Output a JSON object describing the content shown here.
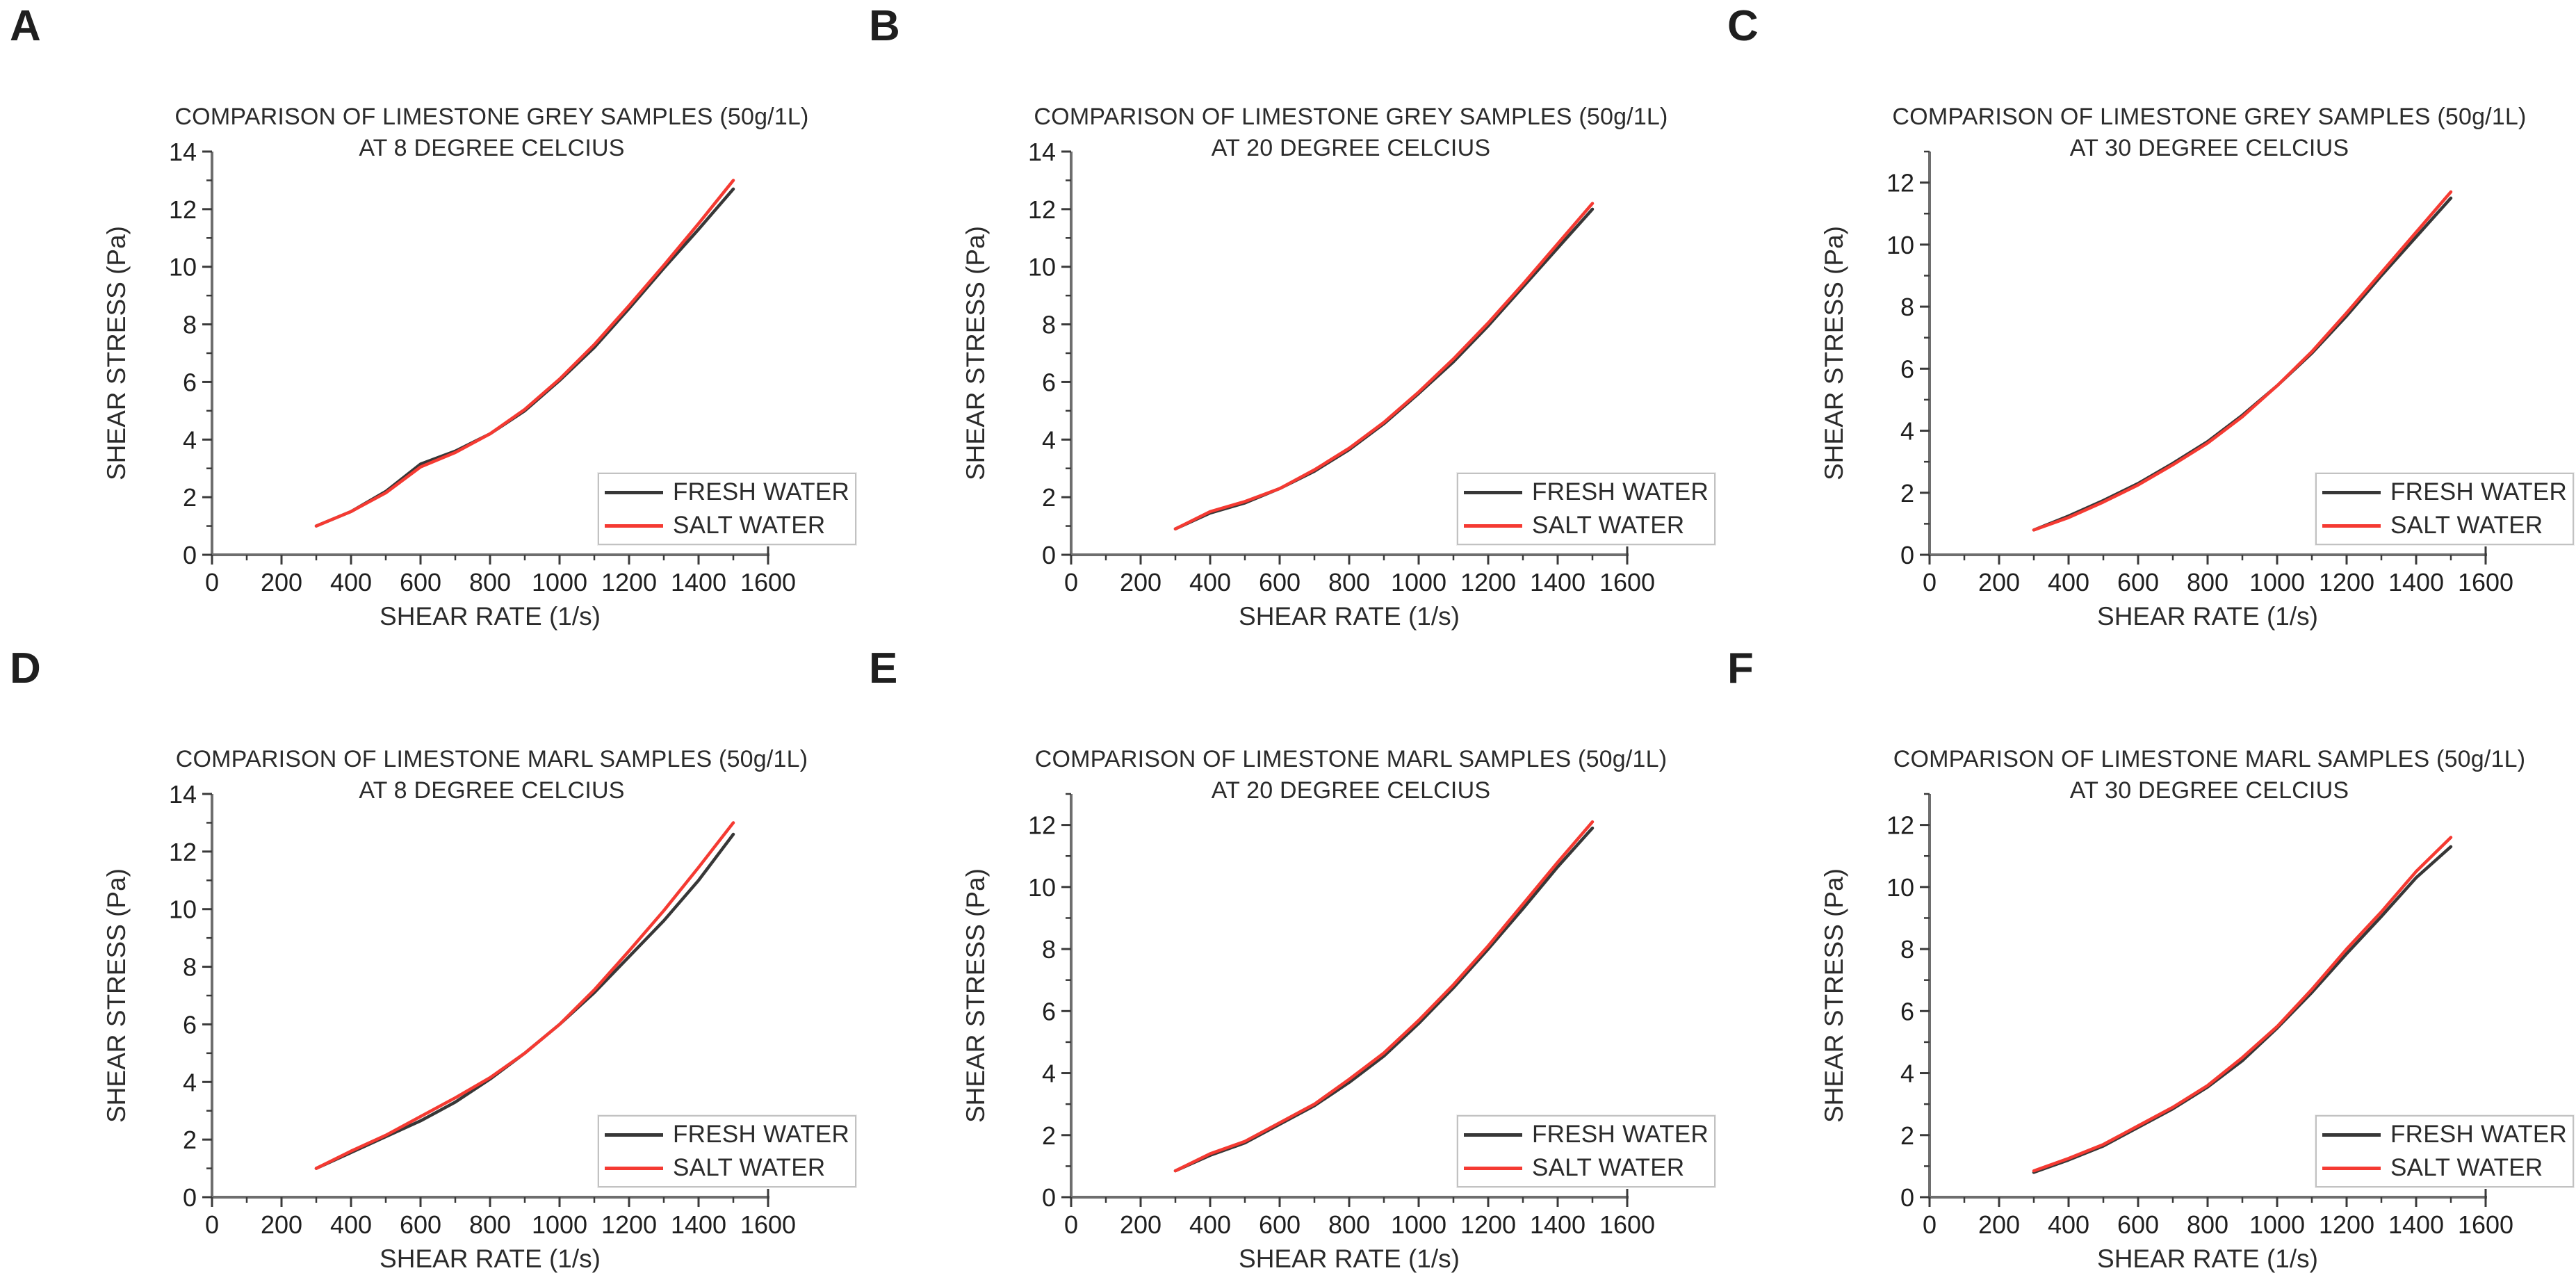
{
  "figure": {
    "background": "#ffffff",
    "legend": {
      "fresh_label": "FRESH WATER",
      "salt_label": "SALT WATER"
    },
    "colors": {
      "fresh_line": "#373737",
      "salt_line": "#f53a32",
      "axis": "#6e6e6e",
      "tick": "#3a3a3a",
      "text": "#1f1f1f",
      "legend_border": "#c2c2c2"
    }
  },
  "chart_data": [
    {
      "type": "line",
      "panel_label": "A",
      "title_line1": "COMPARISON OF LIMESTONE GREY SAMPLES (50g/1L)",
      "title_line2": "AT 8 DEGREE CELCIUS",
      "xlabel": "SHEAR RATE (1/s)",
      "ylabel": "SHEAR STRESS (Pa)",
      "xlim": [
        0,
        1600
      ],
      "ylim": [
        0,
        14
      ],
      "x_ticks": [
        0,
        200,
        400,
        600,
        800,
        1000,
        1200,
        1400,
        1600
      ],
      "y_ticks": [
        0,
        2,
        4,
        6,
        8,
        10,
        12,
        14
      ],
      "grid": false,
      "legend_position": "lower right",
      "x": [
        300,
        400,
        500,
        600,
        700,
        800,
        900,
        1000,
        1100,
        1200,
        1300,
        1400,
        1500
      ],
      "series": [
        {
          "name": "FRESH WATER",
          "color": "#373737",
          "values": [
            1.0,
            1.5,
            2.2,
            3.15,
            3.6,
            4.2,
            5.0,
            6.05,
            7.2,
            8.55,
            9.95,
            11.3,
            12.7
          ]
        },
        {
          "name": "SALT WATER",
          "color": "#f53a32",
          "values": [
            1.0,
            1.5,
            2.15,
            3.05,
            3.55,
            4.2,
            5.05,
            6.1,
            7.3,
            8.65,
            10.05,
            11.5,
            13.0
          ]
        }
      ]
    },
    {
      "type": "line",
      "panel_label": "B",
      "title_line1": "COMPARISON OF LIMESTONE GREY SAMPLES (50g/1L)",
      "title_line2": "AT 20 DEGREE CELCIUS",
      "xlabel": "SHEAR RATE (1/s)",
      "ylabel": "SHEAR STRESS (Pa)",
      "xlim": [
        0,
        1600
      ],
      "ylim": [
        0,
        14
      ],
      "x_ticks": [
        0,
        200,
        400,
        600,
        800,
        1000,
        1200,
        1400,
        1600
      ],
      "y_ticks": [
        0,
        2,
        4,
        6,
        8,
        10,
        12,
        14
      ],
      "grid": false,
      "legend_position": "lower right",
      "x": [
        300,
        400,
        500,
        600,
        700,
        800,
        900,
        1000,
        1100,
        1200,
        1300,
        1400,
        1500
      ],
      "series": [
        {
          "name": "FRESH WATER",
          "color": "#373737",
          "values": [
            0.9,
            1.45,
            1.8,
            2.3,
            2.9,
            3.65,
            4.55,
            5.6,
            6.7,
            7.95,
            9.3,
            10.65,
            12.0
          ]
        },
        {
          "name": "SALT WATER",
          "color": "#f53a32",
          "values": [
            0.9,
            1.5,
            1.85,
            2.3,
            2.95,
            3.7,
            4.6,
            5.65,
            6.8,
            8.05,
            9.4,
            10.8,
            12.2
          ]
        }
      ]
    },
    {
      "type": "line",
      "panel_label": "C",
      "title_line1": "COMPARISON OF LIMESTONE GREY SAMPLES (50g/1L)",
      "title_line2": "AT 30 DEGREE CELCIUS",
      "xlabel": "SHEAR RATE (1/s)",
      "ylabel": "SHEAR STRESS (Pa)",
      "xlim": [
        0,
        1600
      ],
      "ylim": [
        0,
        12
      ],
      "x_ticks": [
        0,
        200,
        400,
        600,
        800,
        1000,
        1200,
        1400,
        1600
      ],
      "y_ticks": [
        0,
        2,
        4,
        6,
        8,
        10,
        12
      ],
      "grid": false,
      "legend_position": "lower right",
      "x": [
        300,
        400,
        500,
        600,
        700,
        800,
        900,
        1000,
        1100,
        1200,
        1300,
        1400,
        1500
      ],
      "series": [
        {
          "name": "FRESH WATER",
          "color": "#373737",
          "values": [
            0.8,
            1.25,
            1.75,
            2.3,
            2.95,
            3.65,
            4.5,
            5.45,
            6.5,
            7.7,
            9.0,
            10.25,
            11.5
          ]
        },
        {
          "name": "SALT WATER",
          "color": "#f53a32",
          "values": [
            0.8,
            1.2,
            1.7,
            2.25,
            2.9,
            3.6,
            4.45,
            5.45,
            6.55,
            7.8,
            9.1,
            10.4,
            11.7
          ]
        }
      ]
    },
    {
      "type": "line",
      "panel_label": "D",
      "title_line1": "COMPARISON OF LIMESTONE MARL SAMPLES (50g/1L)",
      "title_line2": "AT 8 DEGREE CELCIUS",
      "xlabel": "SHEAR RATE (1/s)",
      "ylabel": "SHEAR STRESS (Pa)",
      "xlim": [
        0,
        1600
      ],
      "ylim": [
        0,
        14
      ],
      "x_ticks": [
        0,
        200,
        400,
        600,
        800,
        1000,
        1200,
        1400,
        1600
      ],
      "y_ticks": [
        0,
        2,
        4,
        6,
        8,
        10,
        12,
        14
      ],
      "grid": false,
      "legend_position": "lower right",
      "x": [
        300,
        400,
        500,
        600,
        700,
        800,
        900,
        1000,
        1100,
        1200,
        1300,
        1400,
        1500
      ],
      "series": [
        {
          "name": "FRESH WATER",
          "color": "#373737",
          "values": [
            1.0,
            1.55,
            2.1,
            2.65,
            3.3,
            4.1,
            5.0,
            6.0,
            7.1,
            8.35,
            9.6,
            11.0,
            12.6
          ]
        },
        {
          "name": "SALT WATER",
          "color": "#f53a32",
          "values": [
            1.0,
            1.6,
            2.15,
            2.8,
            3.45,
            4.15,
            5.0,
            6.0,
            7.2,
            8.55,
            9.95,
            11.45,
            13.0
          ]
        }
      ]
    },
    {
      "type": "line",
      "panel_label": "E",
      "title_line1": "COMPARISON OF LIMESTONE MARL SAMPLES (50g/1L)",
      "title_line2": "AT 20 DEGREE CELCIUS",
      "xlabel": "SHEAR RATE (1/s)",
      "ylabel": "SHEAR STRESS (Pa)",
      "xlim": [
        0,
        1600
      ],
      "ylim": [
        0,
        12
      ],
      "x_ticks": [
        0,
        200,
        400,
        600,
        800,
        1000,
        1200,
        1400,
        1600
      ],
      "y_ticks": [
        0,
        2,
        4,
        6,
        8,
        10,
        12
      ],
      "grid": false,
      "legend_position": "lower right",
      "x": [
        300,
        400,
        500,
        600,
        700,
        800,
        900,
        1000,
        1100,
        1200,
        1300,
        1400,
        1500
      ],
      "series": [
        {
          "name": "FRESH WATER",
          "color": "#373737",
          "values": [
            0.85,
            1.35,
            1.75,
            2.35,
            2.95,
            3.7,
            4.55,
            5.6,
            6.75,
            8.0,
            9.3,
            10.65,
            11.9
          ]
        },
        {
          "name": "SALT WATER",
          "color": "#f53a32",
          "values": [
            0.85,
            1.4,
            1.8,
            2.4,
            3.0,
            3.8,
            4.65,
            5.7,
            6.85,
            8.1,
            9.45,
            10.8,
            12.1
          ]
        }
      ]
    },
    {
      "type": "line",
      "panel_label": "F",
      "title_line1": "COMPARISON OF LIMESTONE MARL SAMPLES (50g/1L)",
      "title_line2": "AT 30 DEGREE CELCIUS",
      "xlabel": "SHEAR RATE (1/s)",
      "ylabel": "SHEAR STRESS (Pa)",
      "xlim": [
        0,
        1600
      ],
      "ylim": [
        0,
        12
      ],
      "x_ticks": [
        0,
        200,
        400,
        600,
        800,
        1000,
        1200,
        1400,
        1600
      ],
      "y_ticks": [
        0,
        2,
        4,
        6,
        8,
        10,
        12
      ],
      "grid": false,
      "legend_position": "lower right",
      "x": [
        300,
        400,
        500,
        600,
        700,
        800,
        900,
        1000,
        1100,
        1200,
        1300,
        1400,
        1500
      ],
      "series": [
        {
          "name": "FRESH WATER",
          "color": "#373737",
          "values": [
            0.8,
            1.2,
            1.65,
            2.25,
            2.85,
            3.55,
            4.4,
            5.45,
            6.6,
            7.85,
            9.05,
            10.3,
            11.3
          ]
        },
        {
          "name": "SALT WATER",
          "color": "#f53a32",
          "values": [
            0.85,
            1.25,
            1.7,
            2.3,
            2.9,
            3.6,
            4.5,
            5.5,
            6.7,
            8.0,
            9.2,
            10.5,
            11.6
          ]
        }
      ]
    }
  ]
}
